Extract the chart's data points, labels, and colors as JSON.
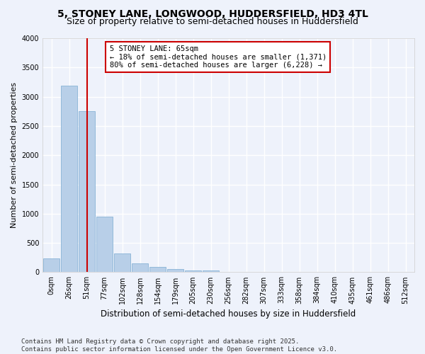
{
  "title": "5, STONEY LANE, LONGWOOD, HUDDERSFIELD, HD3 4TL",
  "subtitle": "Size of property relative to semi-detached houses in Huddersfield",
  "xlabel": "Distribution of semi-detached houses by size in Huddersfield",
  "ylabel": "Number of semi-detached properties",
  "categories": [
    "0sqm",
    "26sqm",
    "51sqm",
    "77sqm",
    "102sqm",
    "128sqm",
    "154sqm",
    "179sqm",
    "205sqm",
    "230sqm",
    "256sqm",
    "282sqm",
    "307sqm",
    "333sqm",
    "358sqm",
    "384sqm",
    "410sqm",
    "435sqm",
    "461sqm",
    "486sqm",
    "512sqm"
  ],
  "values": [
    240,
    3190,
    2750,
    950,
    320,
    155,
    90,
    50,
    30,
    25,
    10,
    5,
    4,
    0,
    0,
    0,
    0,
    0,
    0,
    0,
    0
  ],
  "bar_color": "#b8cfe8",
  "bar_edge_color": "#7aaad0",
  "vline_x": 2.0,
  "vline_color": "#cc0000",
  "annotation_text": "5 STONEY LANE: 65sqm\n← 18% of semi-detached houses are smaller (1,371)\n80% of semi-detached houses are larger (6,228) →",
  "annotation_box_color": "#ffffff",
  "annotation_box_edge": "#cc0000",
  "background_color": "#eef2fb",
  "grid_color": "#ffffff",
  "ylim": [
    0,
    4000
  ],
  "yticks": [
    0,
    500,
    1000,
    1500,
    2000,
    2500,
    3000,
    3500,
    4000
  ],
  "footer": "Contains HM Land Registry data © Crown copyright and database right 2025.\nContains public sector information licensed under the Open Government Licence v3.0.",
  "title_fontsize": 10,
  "subtitle_fontsize": 9,
  "xlabel_fontsize": 8.5,
  "ylabel_fontsize": 8,
  "tick_fontsize": 7,
  "annotation_fontsize": 7.5,
  "footer_fontsize": 6.5
}
